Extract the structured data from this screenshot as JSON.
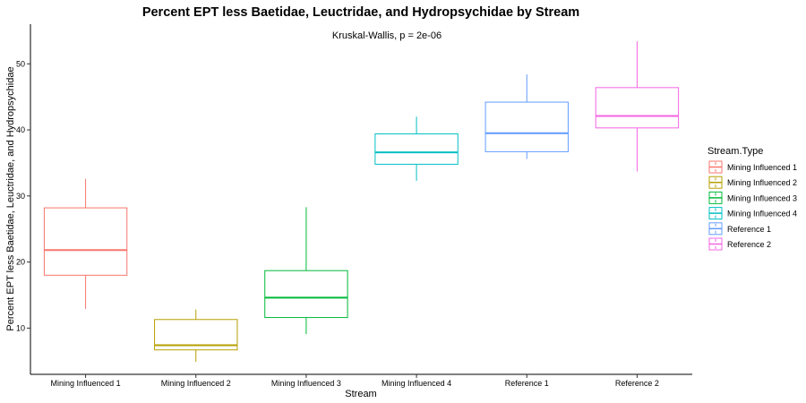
{
  "chart_data": {
    "type": "boxplot",
    "title": "Percent EPT less Baetidae, Leuctridae, and Hydropsychidae by Stream",
    "annotation": "Kruskal-Wallis, p = 2e-06",
    "xlabel": "Stream",
    "ylabel": "Percent EPT less Baetidae, Leuctridae, and Hydropsychidae",
    "ylim": [
      3,
      56
    ],
    "yticks": [
      10,
      20,
      30,
      40,
      50
    ],
    "categories": [
      "Mining Influenced 1",
      "Mining Influenced 2",
      "Mining Influenced 3",
      "Mining Influenced 4",
      "Reference 1",
      "Reference 2"
    ],
    "legend": {
      "title": "Stream.Type",
      "position": "right",
      "entries": [
        "Mining Influenced 1",
        "Mining Influenced 2",
        "Mining Influenced 3",
        "Mining Influenced 4",
        "Reference 1",
        "Reference 2"
      ]
    },
    "colors": [
      "#F8766D",
      "#B79F00",
      "#00BA38",
      "#00BFC4",
      "#619CFF",
      "#F564E3"
    ],
    "boxes": [
      {
        "name": "Mining Influenced 1",
        "min": 12.9,
        "q1": 18.0,
        "median": 21.8,
        "q3": 28.2,
        "max": 32.6
      },
      {
        "name": "Mining Influenced 2",
        "min": 4.9,
        "q1": 6.7,
        "median": 7.4,
        "q3": 11.3,
        "max": 12.8
      },
      {
        "name": "Mining Influenced 3",
        "min": 9.1,
        "q1": 11.6,
        "median": 14.6,
        "q3": 18.7,
        "max": 28.3
      },
      {
        "name": "Mining Influenced 4",
        "min": 32.3,
        "q1": 34.8,
        "median": 36.6,
        "q3": 39.4,
        "max": 42.0
      },
      {
        "name": "Reference 1",
        "min": 35.6,
        "q1": 36.7,
        "median": 39.5,
        "q3": 44.2,
        "max": 48.4
      },
      {
        "name": "Reference 2",
        "min": 33.7,
        "q1": 40.3,
        "median": 42.1,
        "q3": 46.4,
        "max": 53.4
      }
    ]
  }
}
